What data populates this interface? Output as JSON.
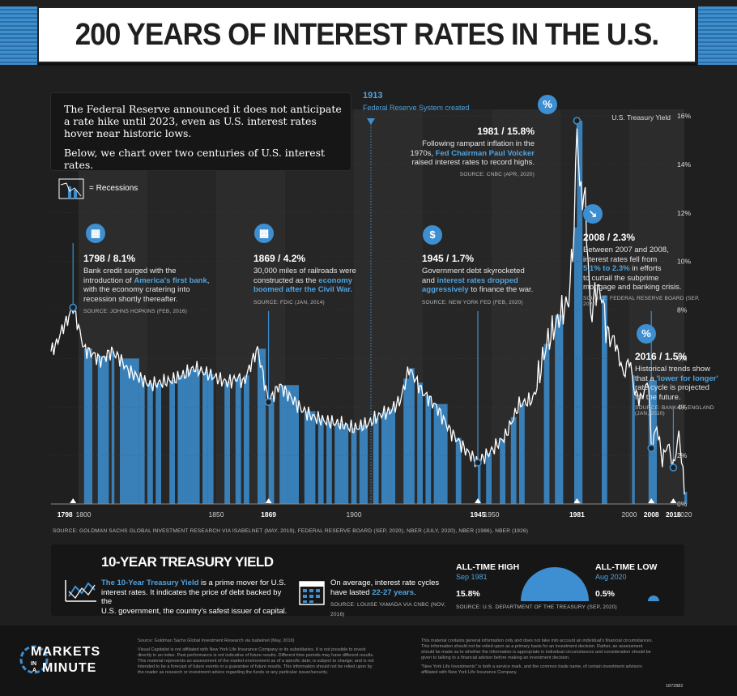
{
  "title": "200 YEARS OF INTEREST RATES IN THE U.S.",
  "intro": {
    "p1": "The Federal Reserve announced it does not anticipate a rate hike until 2023, even as U.S. interest rates hover near historic lows.",
    "p2": "Below, we chart over two centuries of U.S. interest rates."
  },
  "legend": {
    "recessions": "= Recessions"
  },
  "fed_marker": {
    "year": "1913",
    "label": "Federal Reserve System created"
  },
  "annotations": {
    "a1798": {
      "head": "1798 / 8.1%",
      "body1": "Bank credit surged with the",
      "body2_pre": "introduction of ",
      "body2_hl": "America's first bank",
      "body2_post": ",",
      "body3": "with the economy cratering into",
      "body4": "recession shortly thereafter.",
      "source": "SOURCE: JOHNS HOPKINS (FEB, 2016)"
    },
    "a1869": {
      "head": "1869 / 4.2%",
      "body1": "30,000 miles of railroads were",
      "body2_pre": "constructed as the ",
      "body2_hl": "economy",
      "body3_hl": "boomed after the Civil War.",
      "source": "SOURCE: FDIC (JAN, 2014)"
    },
    "a1945": {
      "head": "1945 / 1.7%",
      "body1": "Government debt skyrocketed",
      "body2_pre": "and ",
      "body2_hl": "interest rates dropped",
      "body3_hl": "aggressively",
      "body3_post": " to finance the war.",
      "source": "SOURCE: NEW YORK FED (FEB, 2020)"
    },
    "a1981": {
      "head": "1981 / 15.8%",
      "body1": "Following rampant inflation in the",
      "body2_pre": "1970s, ",
      "body2_hl": "Fed Chairman Paul Volcker",
      "body3": "raised interest rates to record highs.",
      "source": "SOURCE: CNBC (APR, 2020)"
    },
    "a2008": {
      "head": "2008 / 2.3%",
      "body1": "Between 2007 and 2008,",
      "body2": "interest rates fell from",
      "body3_hl": "5.1% to 2.3%",
      "body3_post": " in efforts",
      "body4": "to curtail the subprime",
      "body5": "mortgage and banking crisis.",
      "source": "SOURCE: FEDERAL RESERVE BOARD (SEP, 2020)"
    },
    "a2016": {
      "head": "2016 / 1.5%",
      "body1": "Historical trends show",
      "body2_pre": "that a ",
      "body2_hl": "'lower for longer'",
      "body3": "rate cycle is projected",
      "body4": "for the future.",
      "source1": "SOURCE: BANK OF ENGLAND",
      "source2": "(JAN, 2020)"
    }
  },
  "chart_source": "SOURCE: GOLDMAN SACHS GLOBAL INVESTMENT RESEARCH VIA ISABELNET (MAY, 2019), FEDERAL RESERVE BOARD (SEP, 2020), NBER (JULY, 2020), NBER (1986), NBER (1926)",
  "chart_data": {
    "type": "line",
    "title": "200 YEARS OF INTEREST RATES IN THE U.S.",
    "ylabel": "U.S. Treasury Yield",
    "ylim": [
      0,
      16
    ],
    "xlim": [
      1790,
      2020
    ],
    "y_ticks": [
      "0%",
      "2%",
      "4%",
      "6%",
      "8%",
      "10%",
      "12%",
      "14%",
      "16%"
    ],
    "x_ticks": [
      "1798",
      "1800",
      "1850",
      "1869",
      "1900",
      "1945",
      "1950",
      "1981",
      "2000",
      "2008",
      "2016",
      "2020"
    ],
    "series": [
      {
        "name": "U.S. Treasury Yield",
        "x": [
          1790,
          1792,
          1794,
          1796,
          1798,
          1800,
          1802,
          1805,
          1808,
          1812,
          1815,
          1818,
          1822,
          1826,
          1830,
          1834,
          1838,
          1842,
          1846,
          1850,
          1854,
          1858,
          1860,
          1862,
          1865,
          1869,
          1873,
          1877,
          1881,
          1885,
          1890,
          1895,
          1900,
          1905,
          1910,
          1913,
          1917,
          1920,
          1925,
          1930,
          1935,
          1940,
          1945,
          1950,
          1955,
          1960,
          1965,
          1970,
          1975,
          1978,
          1980,
          1981,
          1982,
          1984,
          1986,
          1988,
          1990,
          1992,
          1995,
          1998,
          2000,
          2002,
          2004,
          2006,
          2007,
          2008,
          2010,
          2012,
          2014,
          2016,
          2018,
          2019,
          2020
        ],
        "y": [
          6.3,
          6.6,
          7.2,
          7.6,
          8.1,
          7.3,
          6.4,
          6.2,
          5.9,
          6.3,
          6.0,
          5.5,
          5.2,
          4.9,
          5.0,
          5.1,
          5.3,
          5.6,
          5.4,
          5.2,
          5.0,
          5.2,
          5.0,
          5.6,
          6.4,
          4.2,
          4.9,
          4.4,
          3.9,
          3.6,
          3.4,
          3.3,
          3.1,
          3.3,
          3.7,
          3.8,
          4.3,
          5.6,
          4.6,
          4.0,
          3.0,
          2.3,
          1.7,
          2.2,
          2.8,
          4.1,
          4.3,
          6.6,
          7.8,
          8.4,
          11.4,
          15.8,
          13.0,
          12.5,
          7.7,
          8.9,
          8.6,
          7.0,
          6.6,
          5.3,
          6.0,
          4.6,
          4.3,
          4.8,
          5.1,
          2.3,
          3.2,
          1.8,
          2.5,
          1.5,
          2.9,
          1.9,
          0.5
        ]
      }
    ],
    "recessions": [
      [
        1802,
        1804
      ],
      [
        1807,
        1810
      ],
      [
        1812,
        1812
      ],
      [
        1815,
        1821
      ],
      [
        1822,
        1823
      ],
      [
        1825,
        1826
      ],
      [
        1828,
        1829
      ],
      [
        1833,
        1834
      ],
      [
        1836,
        1838
      ],
      [
        1839,
        1843
      ],
      [
        1845,
        1846
      ],
      [
        1847,
        1848
      ],
      [
        1853,
        1854
      ],
      [
        1857,
        1858
      ],
      [
        1860,
        1861
      ],
      [
        1865,
        1867
      ],
      [
        1869,
        1870
      ],
      [
        1873,
        1879
      ],
      [
        1882,
        1885
      ],
      [
        1887,
        1888
      ],
      [
        1890,
        1891
      ],
      [
        1893,
        1894
      ],
      [
        1895,
        1897
      ],
      [
        1899,
        1900
      ],
      [
        1902,
        1904
      ],
      [
        1907,
        1908
      ],
      [
        1910,
        1912
      ],
      [
        1913,
        1914
      ],
      [
        1918,
        1919
      ],
      [
        1920,
        1921
      ],
      [
        1923,
        1924
      ],
      [
        1926,
        1927
      ],
      [
        1929,
        1933
      ],
      [
        1937,
        1938
      ],
      [
        1945,
        1945
      ],
      [
        1948,
        1949
      ],
      [
        1953,
        1954
      ],
      [
        1957,
        1958
      ],
      [
        1960,
        1961
      ],
      [
        1969,
        1970
      ],
      [
        1973,
        1975
      ],
      [
        1980,
        1980
      ],
      [
        1981,
        1982
      ],
      [
        1990,
        1991
      ],
      [
        2001,
        2001
      ],
      [
        2007,
        2009
      ],
      [
        2020,
        2020
      ]
    ],
    "highlights": [
      {
        "year": 1798,
        "value": 8.1
      },
      {
        "year": 1869,
        "value": 4.2
      },
      {
        "year": 1945,
        "value": 1.7
      },
      {
        "year": 1981,
        "value": 15.8
      },
      {
        "year": 2008,
        "value": 2.3
      },
      {
        "year": 2016,
        "value": 1.5
      }
    ],
    "legend": "= Recessions"
  },
  "bottom": {
    "title": "10-YEAR TREASURY YIELD",
    "desc_hl": "The 10-Year Treasury Yield",
    "desc_rest1": " is a prime mover for U.S.",
    "desc2": "interest rates. It indicates the price of debt backed by the",
    "desc3": "U.S. government, the country's safest issuer of capital.",
    "cycle1": "On average, interest rate cycles",
    "cycle2_pre": "have lasted ",
    "cycle2_hl": "22-27 years",
    "cycle2_post": ".",
    "cycle_source": "SOURCE: LOUISE YAMADA VIA CNBC (NOV, 2016)",
    "high_label": "ALL-TIME HIGH",
    "high_date": "Sep 1981",
    "high_value": "15.8%",
    "low_label": "ALL-TIME LOW",
    "low_date": "Aug 2020",
    "low_value": "0.5%",
    "extremes_source": "SOURCE: U.S. DEPARTMENT OF THE TREASURY (SEP, 2020)"
  },
  "footer": {
    "logo1": "MARKETS",
    "logo_in": "IN",
    "logo_a": "A",
    "logo2": "MINUTE",
    "fine_l1": "Source: Goldman Sachs Global Investment Research via Isabelnet (May, 2019)",
    "fine_l2": "Visual Capitalist is not affiliated with New York Life Insurance Company or its subsidiaries. It is not possible to invest",
    "fine_l3": "directly in an index. Past performance is not indicative of future results. Different time periods may have different results.",
    "fine_l4": "This material represents an assessment of the market environment as of a specific date; is subject to change; and is not",
    "fine_l5": "intended to be a forecast of future events or a guarantee of future results. This information should not be relied upon by",
    "fine_l6": "the reader as research or investment advice regarding the funds or any particular issuer/security.",
    "fine_r1": "This material contains general information only and does not take into account an individual's financial circumstances.",
    "fine_r2": "This information should not be relied upon as a primary basis for an investment decision. Rather, an assessment",
    "fine_r3": "should be made as to whether the information is appropriate in individual circumstances and consideration should be",
    "fine_r4": "given to talking to a financial advisor before making an investment decision.",
    "fine_r5": "\"New York Life Investments\" is both a service mark, and the common trade name, of certain investment advisors",
    "fine_r6": "affiliated with New York Life Insurance Company.",
    "code": "1872882"
  },
  "colors": {
    "accent": "#3d8fd1",
    "bg": "#1f1f1f",
    "line": "#ffffff"
  }
}
